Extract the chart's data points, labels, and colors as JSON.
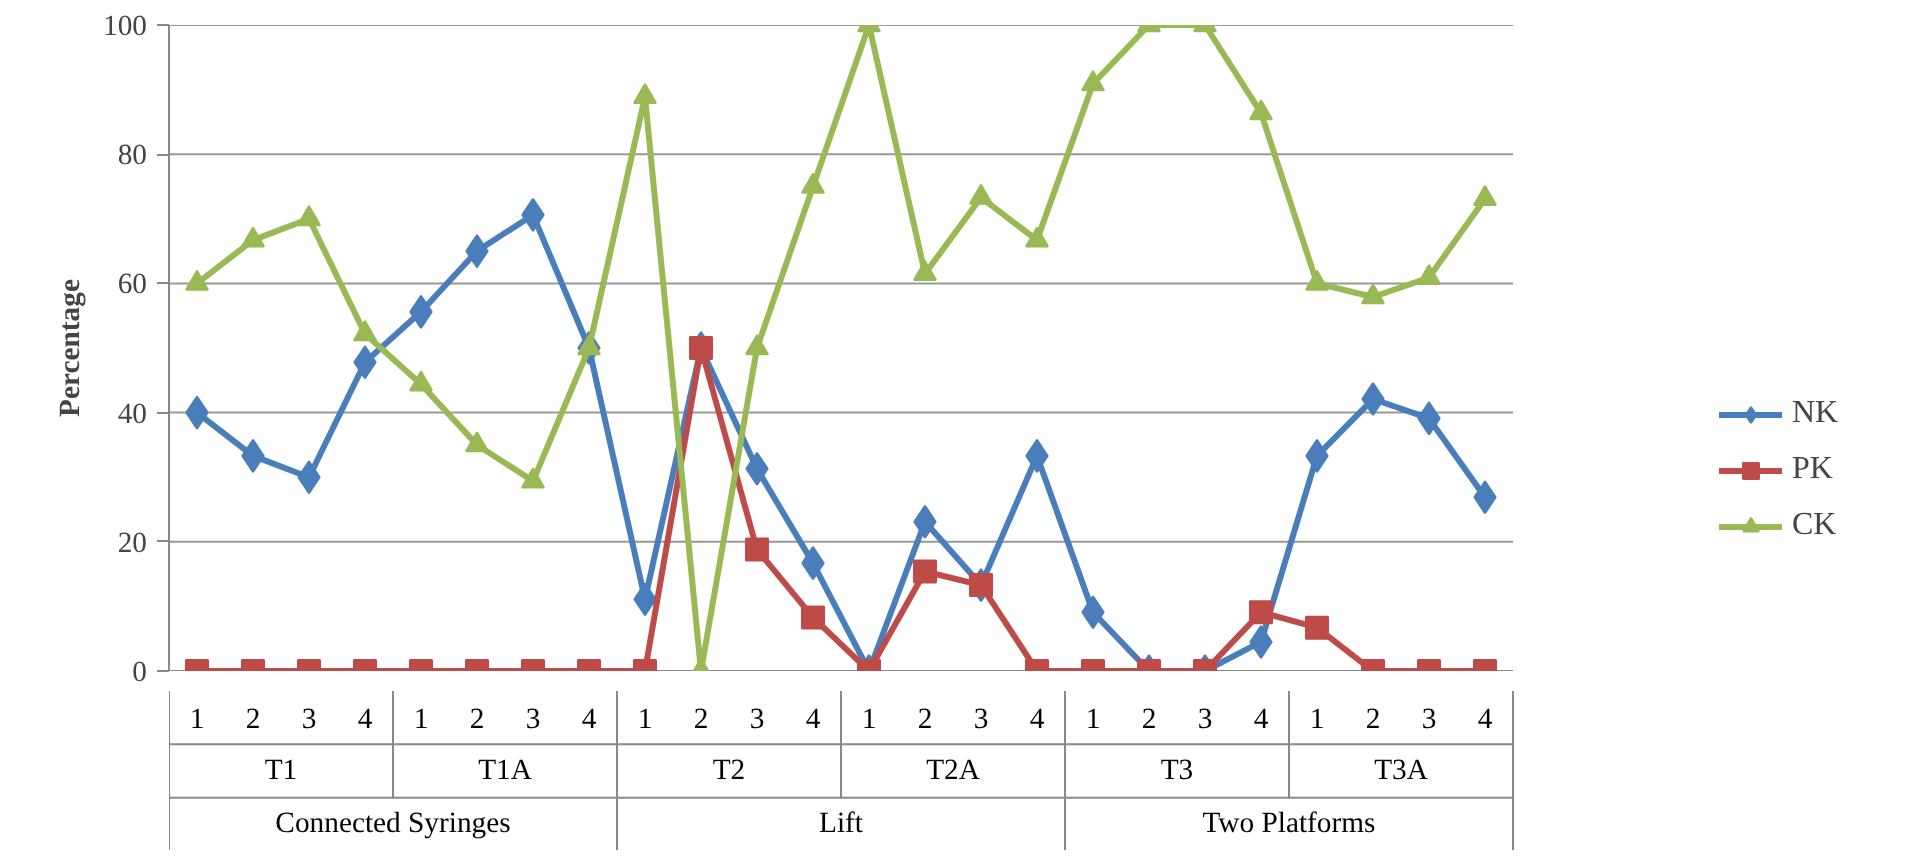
{
  "chart_data": {
    "type": "line",
    "ylabel": "Percentage",
    "categories": [
      "1",
      "2",
      "3",
      "4",
      "1",
      "2",
      "3",
      "4",
      "1",
      "2",
      "3",
      "4",
      "1",
      "2",
      "3",
      "4",
      "1",
      "2",
      "3",
      "4",
      "1",
      "2",
      "3",
      "4"
    ],
    "series": [
      {
        "name": "NK",
        "color": "#4a7ebb",
        "marker": "diamond",
        "values": [
          40,
          33.3,
          30,
          47.8,
          55.6,
          65,
          70.6,
          50,
          11.1,
          50,
          31.3,
          16.7,
          0,
          23.1,
          13.3,
          33.3,
          9.1,
          0,
          0,
          4.5,
          33.3,
          42.1,
          39.1,
          26.9
        ]
      },
      {
        "name": "PK",
        "color": "#be4b48",
        "marker": "square",
        "values": [
          0,
          0,
          0,
          0,
          0,
          0,
          0,
          0,
          0,
          50,
          18.8,
          8.3,
          0,
          15.4,
          13.3,
          0,
          0,
          0,
          0,
          9.1,
          6.7,
          0,
          0,
          0
        ]
      },
      {
        "name": "CK",
        "color": "#98b954",
        "marker": "triangle",
        "values": [
          60,
          66.7,
          70,
          52.2,
          44.4,
          35,
          29.4,
          50,
          88.9,
          0,
          50,
          75,
          100,
          61.5,
          73.3,
          66.7,
          90.9,
          100,
          100,
          86.4,
          60,
          57.9,
          60.9,
          73.1
        ]
      }
    ],
    "ylim": [
      0,
      100
    ],
    "yticks": [
      0,
      20,
      40,
      60,
      80,
      100
    ],
    "grid": "y",
    "legend": "right",
    "annotations": [
      "T1",
      "T1A",
      "T2",
      "T2A",
      "T3",
      "T3A",
      "Connected Syringes",
      "Lift",
      "Two Platforms"
    ]
  }
}
